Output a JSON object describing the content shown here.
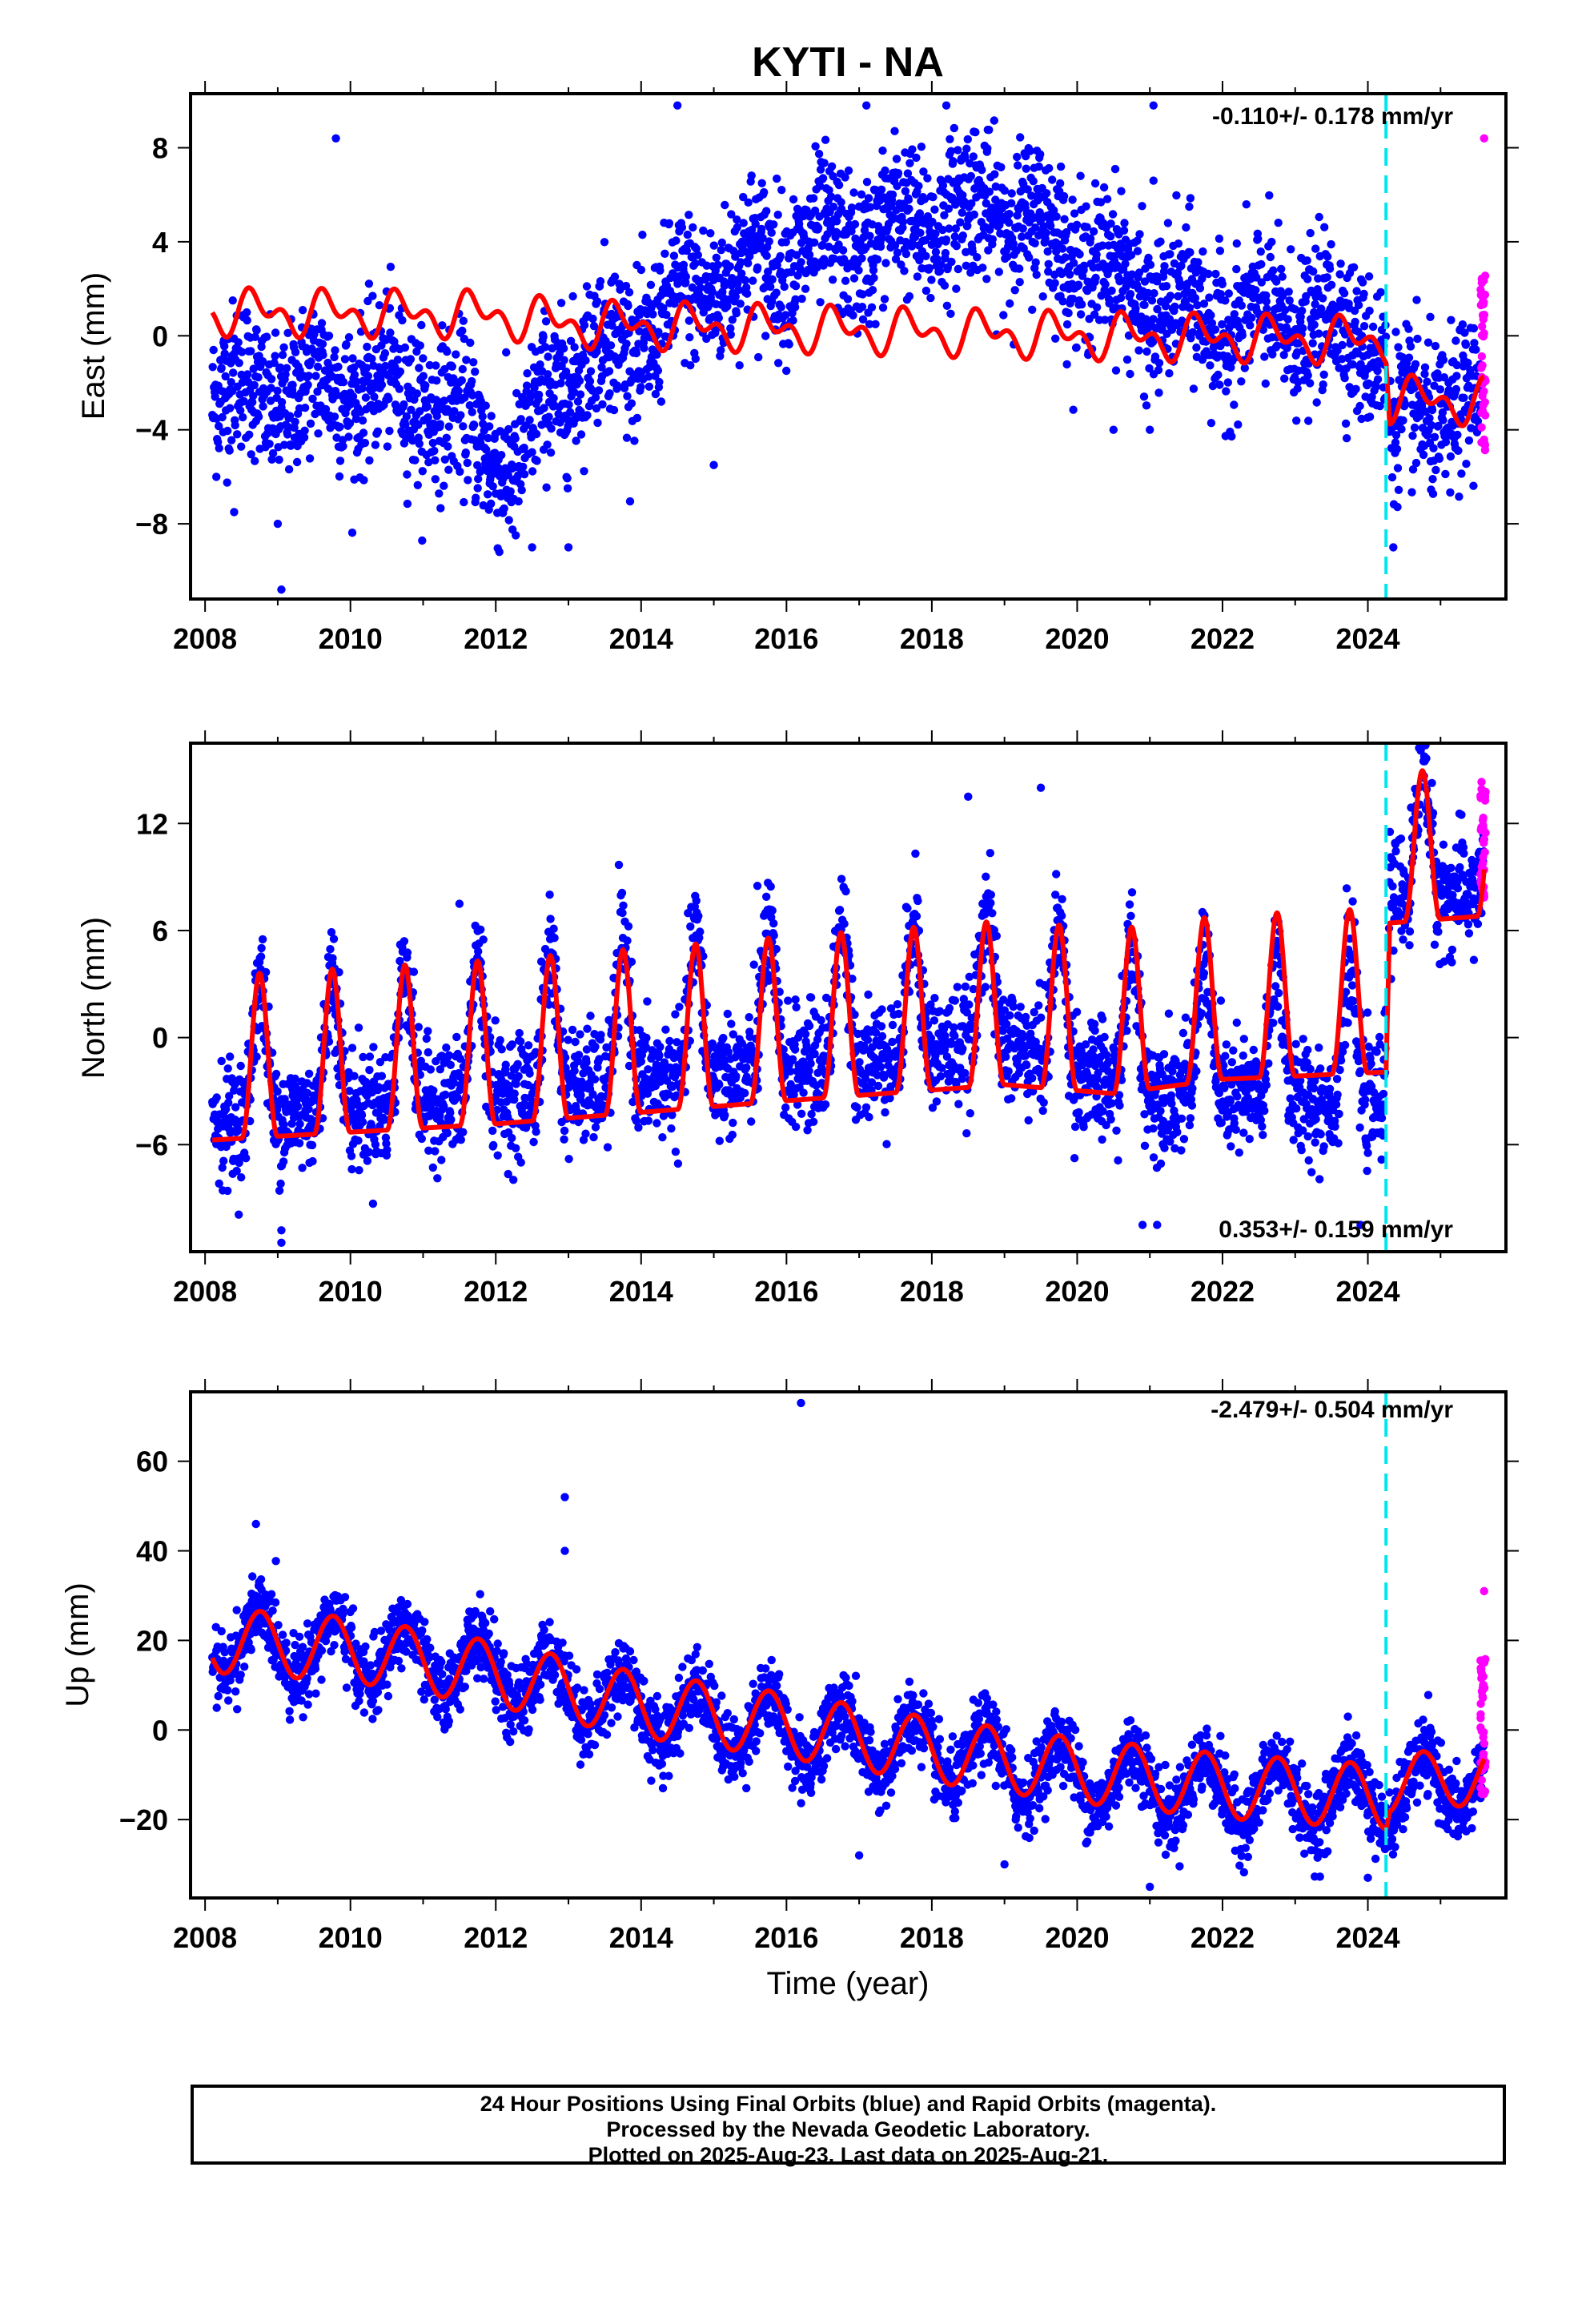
{
  "title": "KYTI - NA",
  "colors": {
    "final_points": "#0000ff",
    "rapid_points": "#ff00ff",
    "model_line": "#ff0000",
    "event_line": "#00e5ee",
    "frame": "#000000"
  },
  "xlabel": "Time (year)",
  "footer": {
    "line1": "24 Hour Positions Using Final Orbits (blue) and Rapid Orbits (magenta).",
    "line2": "Processed by the Nevada Geodetic Laboratory.",
    "line3": "Plotted on 2025-Aug-23. Last data on 2025-Aug-21."
  },
  "chart_data": [
    {
      "type": "scatter",
      "panel": "east",
      "ylabel": "East (mm)",
      "rate_text": "-0.110+/- 0.178 mm/yr",
      "rate_position": "top-right",
      "xlim": [
        2007.8,
        2025.9
      ],
      "ylim": [
        -11.2,
        10.3
      ],
      "xticks": [
        "2008",
        "2010",
        "2012",
        "2014",
        "2016",
        "2018",
        "2020",
        "2022",
        "2024"
      ],
      "yticks": [
        -8,
        -4,
        0,
        4,
        8
      ],
      "ytick_labels": [
        "−8",
        "−4",
        "0",
        "4",
        "8"
      ],
      "event_x": 2024.25,
      "final_trend": [
        [
          2008.1,
          -2.2
        ],
        [
          2009,
          -2.5
        ],
        [
          2010,
          -2.0
        ],
        [
          2011,
          -2.5
        ],
        [
          2011.9,
          -4.5
        ],
        [
          2012.3,
          -6.0
        ],
        [
          2012.7,
          -2.5
        ],
        [
          2013.2,
          -1.0
        ],
        [
          2014,
          0.0
        ],
        [
          2015,
          2.5
        ],
        [
          2016,
          3.5
        ],
        [
          2017,
          4.0
        ],
        [
          2018,
          5.0
        ],
        [
          2019,
          5.5
        ],
        [
          2020,
          3.5
        ],
        [
          2021,
          1.5
        ],
        [
          2022,
          0.5
        ],
        [
          2023,
          0.8
        ],
        [
          2024.2,
          -0.2
        ],
        [
          2024.3,
          -4.0
        ],
        [
          2025,
          -3.0
        ],
        [
          2025.55,
          -3.0
        ]
      ],
      "final_spread": 1.6,
      "final_amp": 0.8,
      "outliers": [
        [
          2008.4,
          -7.5
        ],
        [
          2009.0,
          -8.0
        ],
        [
          2009.05,
          -10.8
        ],
        [
          2009.8,
          8.4
        ],
        [
          2012.5,
          -9.0
        ],
        [
          2014.5,
          9.8
        ],
        [
          2017.1,
          9.8
        ],
        [
          2018.2,
          9.8
        ],
        [
          2021.05,
          9.8
        ],
        [
          2021.05,
          6.6
        ],
        [
          2024.35,
          -9.0
        ],
        [
          2020.5,
          -4.0
        ],
        [
          2021.0,
          -4.0
        ],
        [
          2015.0,
          -5.5
        ],
        [
          2013.0,
          -9.0
        ]
      ],
      "rapid_x": [
        2025.55,
        2025.62
      ],
      "rapid_ymin": -5.0,
      "rapid_ymax": 2.8,
      "rapid_extra": [
        8.4
      ],
      "model": {
        "pre": {
          "trend": [
            [
              2008.1,
              1.0
            ],
            [
              2012.0,
              0.9
            ],
            [
              2013.0,
              0.5
            ],
            [
              2016.0,
              0.3
            ],
            [
              2020.0,
              0.0
            ],
            [
              2024.25,
              -0.2
            ]
          ],
          "amp": 1.1,
          "phase": 0.45
        },
        "post": {
          "trend": [
            [
              2024.3,
              -2.7
            ],
            [
              2025.6,
              -2.8
            ]
          ],
          "amp": 1.1,
          "phase": 0.45
        }
      }
    },
    {
      "type": "scatter",
      "panel": "north",
      "ylabel": "North (mm)",
      "rate_text": "0.353+/- 0.159 mm/yr",
      "rate_position": "bottom-right",
      "xlim": [
        2007.8,
        2025.9
      ],
      "ylim": [
        -12.0,
        16.5
      ],
      "xticks": [
        "2008",
        "2010",
        "2012",
        "2014",
        "2016",
        "2018",
        "2020",
        "2022",
        "2024"
      ],
      "yticks": [
        -6,
        0,
        6,
        12
      ],
      "ytick_labels": [
        "−6",
        "0",
        "6",
        "12"
      ],
      "event_x": 2024.25,
      "final_trend": [
        [
          2008.1,
          -2.0
        ],
        [
          2012,
          -0.5
        ],
        [
          2016,
          1.0
        ],
        [
          2019,
          2.5
        ],
        [
          2020.5,
          0.0
        ],
        [
          2022,
          -0.5
        ],
        [
          2024.2,
          -1.0
        ],
        [
          2024.3,
          10.5
        ],
        [
          2025.6,
          11.0
        ]
      ],
      "final_spread": 1.6,
      "final_amp": 5.0,
      "outliers": [
        [
          2009.05,
          -10.8
        ],
        [
          2009.05,
          -11.5
        ],
        [
          2011.5,
          7.5
        ],
        [
          2015.6,
          8.5
        ],
        [
          2018.5,
          13.5
        ],
        [
          2019.5,
          14.0
        ],
        [
          2020.9,
          -10.5
        ],
        [
          2021.1,
          -10.5
        ],
        [
          2023.9,
          -10.5
        ]
      ],
      "rapid_x": [
        2025.55,
        2025.62
      ],
      "rapid_ymin": 7.8,
      "rapid_ymax": 14.5,
      "rapid_extra": [],
      "model": {
        "pre": {
          "trend": [
            [
              2008.1,
              -1.6
            ],
            [
              2012,
              -0.7
            ],
            [
              2016,
              0.6
            ],
            [
              2019,
              1.5
            ],
            [
              2020.5,
              1.0
            ],
            [
              2022,
              1.8
            ],
            [
              2024.2,
              2.2
            ]
          ],
          "amp": 4.6,
          "phase": 0.5
        },
        "post": {
          "trend": [
            [
              2024.3,
              10.2
            ],
            [
              2025.6,
              10.6
            ]
          ],
          "amp": 4.2,
          "phase": 0.5
        }
      }
    },
    {
      "type": "scatter",
      "panel": "up",
      "ylabel": "Up (mm)",
      "rate_text": "-2.479+/- 0.504 mm/yr",
      "rate_position": "top-right",
      "xlim": [
        2007.8,
        2025.9
      ],
      "ylim": [
        -37.5,
        75.5
      ],
      "xticks": [
        "2008",
        "2010",
        "2012",
        "2014",
        "2016",
        "2018",
        "2020",
        "2022",
        "2024"
      ],
      "yticks": [
        -20,
        0,
        20,
        40,
        60
      ],
      "ytick_labels": [
        "−20",
        "0",
        "20",
        "40",
        "60"
      ],
      "event_x": 2024.25,
      "final_trend": [
        [
          2008.1,
          20
        ],
        [
          2010,
          18
        ],
        [
          2012,
          13
        ],
        [
          2014,
          5
        ],
        [
          2016,
          0
        ],
        [
          2018,
          -5
        ],
        [
          2020,
          -10
        ],
        [
          2022,
          -14
        ],
        [
          2024.2,
          -15
        ],
        [
          2025.6,
          -10
        ]
      ],
      "final_spread": 4.0,
      "final_amp": 7.0,
      "outliers": [
        [
          2008.7,
          46
        ],
        [
          2012.95,
          52
        ],
        [
          2012.95,
          40
        ],
        [
          2016.2,
          73
        ],
        [
          2014.3,
          -13
        ],
        [
          2017.0,
          -28
        ],
        [
          2019.0,
          -30
        ],
        [
          2024.0,
          -33
        ],
        [
          2021.0,
          -35
        ]
      ],
      "rapid_x": [
        2025.55,
        2025.62
      ],
      "rapid_ymin": -15,
      "rapid_ymax": 16,
      "rapid_extra": [
        31
      ],
      "model": {
        "pre": {
          "trend": [
            [
              2008.1,
              20
            ],
            [
              2010,
              18
            ],
            [
              2012,
              12.5
            ],
            [
              2014,
              5.5
            ],
            [
              2016,
              1
            ],
            [
              2018,
              -4.5
            ],
            [
              2020,
              -9
            ],
            [
              2022,
              -12.5
            ],
            [
              2024.25,
              -15
            ]
          ],
          "amp": 7.2,
          "phase": 0.7
        },
        "post": {
          "trend": [
            [
              2024.3,
              -12
            ],
            [
              2025.6,
              -10
            ]
          ],
          "amp": 6.5,
          "phase": 0.7
        }
      }
    }
  ]
}
